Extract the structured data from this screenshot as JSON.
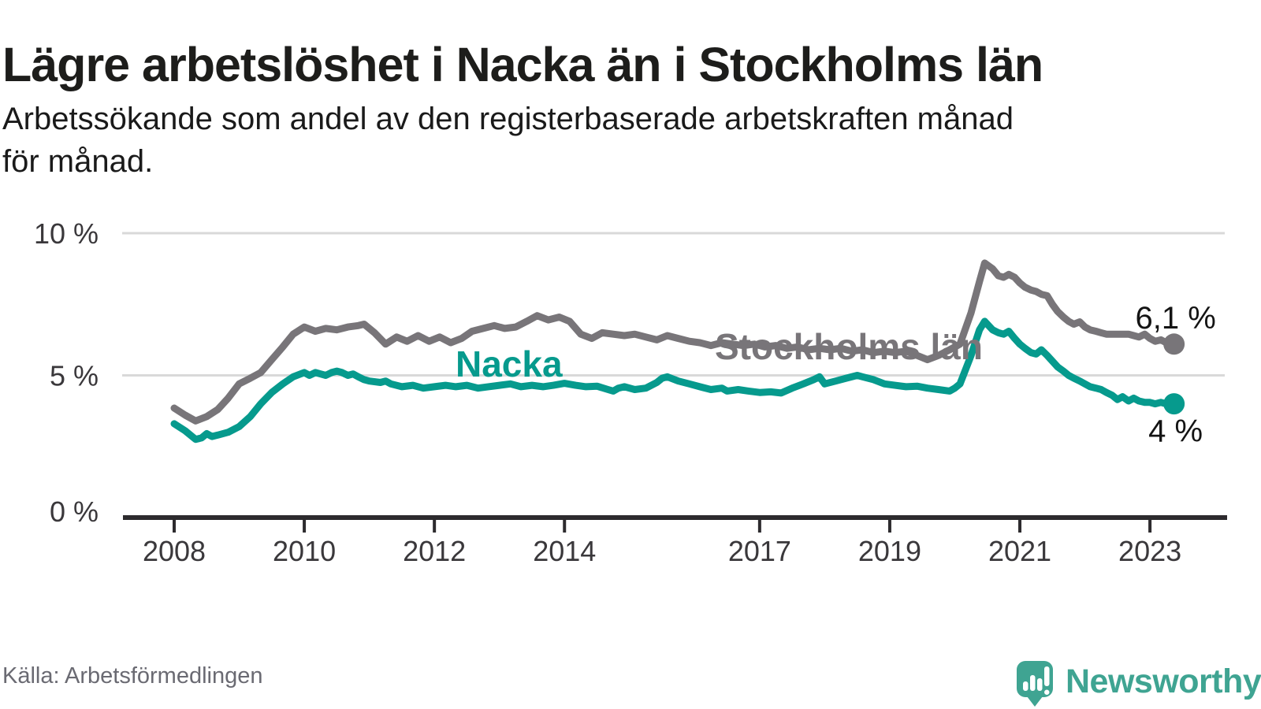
{
  "title": "Lägre arbetslöshet i Nacka än i Stockholms län",
  "subtitle": "Arbetssökande som andel av den registerbaserade arbetskraften månad\nför månad.",
  "source": "Källa: Arbetsförmedlingen",
  "brand": {
    "name": "Newsworthy",
    "color": "#3fa492"
  },
  "colors": {
    "stockholm_gray": "#787579",
    "nacka_teal": "#069a8d",
    "grid": "#d9d9d9",
    "axis": "#2d2b2e",
    "tick_label": "#3a383b",
    "end_label": "#141414",
    "title_text": "#1d1d1b",
    "source_text": "#6a6a72",
    "logo_teal": "#3fa492"
  },
  "chart_data": {
    "type": "line",
    "title": "Lägre arbetslöshet i Nacka än i Stockholms län",
    "xlabel": "",
    "ylabel": "",
    "y_unit": "%",
    "ylim": [
      0,
      10
    ],
    "xlim": [
      2007.2,
      2024.2
    ],
    "grid": "horizontal",
    "legend": "inline-labels",
    "yticks": [
      {
        "value": 10,
        "label": "10 %"
      },
      {
        "value": 5,
        "label": "5 %"
      },
      {
        "value": 0,
        "label": "0 %"
      }
    ],
    "xticks": [
      {
        "value": 2008,
        "label": "2008"
      },
      {
        "value": 2010,
        "label": "2010"
      },
      {
        "value": 2012,
        "label": "2012"
      },
      {
        "value": 2014,
        "label": "2014"
      },
      {
        "value": 2017,
        "label": "2017"
      },
      {
        "value": 2019,
        "label": "2019"
      },
      {
        "value": 2021,
        "label": "2021"
      },
      {
        "value": 2023,
        "label": "2023"
      }
    ],
    "series": [
      {
        "name": "Stockholms län",
        "color": "#787579",
        "end_label": "6,1 %",
        "end_value": 6.1,
        "points": [
          [
            2008.0,
            3.85
          ],
          [
            2008.17,
            3.6
          ],
          [
            2008.33,
            3.4
          ],
          [
            2008.5,
            3.55
          ],
          [
            2008.67,
            3.8
          ],
          [
            2008.83,
            4.2
          ],
          [
            2009.0,
            4.7
          ],
          [
            2009.17,
            4.9
          ],
          [
            2009.33,
            5.1
          ],
          [
            2009.5,
            5.55
          ],
          [
            2009.67,
            6.0
          ],
          [
            2009.83,
            6.45
          ],
          [
            2010.0,
            6.7
          ],
          [
            2010.17,
            6.55
          ],
          [
            2010.33,
            6.65
          ],
          [
            2010.5,
            6.6
          ],
          [
            2010.67,
            6.7
          ],
          [
            2010.83,
            6.75
          ],
          [
            2010.92,
            6.8
          ],
          [
            2011.08,
            6.5
          ],
          [
            2011.25,
            6.1
          ],
          [
            2011.42,
            6.35
          ],
          [
            2011.58,
            6.2
          ],
          [
            2011.75,
            6.4
          ],
          [
            2011.92,
            6.2
          ],
          [
            2012.08,
            6.35
          ],
          [
            2012.25,
            6.15
          ],
          [
            2012.42,
            6.3
          ],
          [
            2012.58,
            6.55
          ],
          [
            2012.75,
            6.65
          ],
          [
            2012.92,
            6.75
          ],
          [
            2013.08,
            6.65
          ],
          [
            2013.25,
            6.7
          ],
          [
            2013.42,
            6.9
          ],
          [
            2013.58,
            7.1
          ],
          [
            2013.75,
            6.95
          ],
          [
            2013.92,
            7.05
          ],
          [
            2014.08,
            6.9
          ],
          [
            2014.25,
            6.45
          ],
          [
            2014.42,
            6.3
          ],
          [
            2014.58,
            6.5
          ],
          [
            2014.75,
            6.45
          ],
          [
            2014.92,
            6.4
          ],
          [
            2015.08,
            6.45
          ],
          [
            2015.25,
            6.35
          ],
          [
            2015.42,
            6.25
          ],
          [
            2015.58,
            6.4
          ],
          [
            2015.75,
            6.3
          ],
          [
            2015.92,
            6.2
          ],
          [
            2016.08,
            6.15
          ],
          [
            2016.25,
            6.05
          ],
          [
            2016.42,
            6.15
          ],
          [
            2016.58,
            6.1
          ],
          [
            2016.75,
            6.05
          ],
          [
            2016.92,
            6.1
          ],
          [
            2017.08,
            6.0
          ],
          [
            2017.25,
            6.05
          ],
          [
            2017.42,
            5.95
          ],
          [
            2017.58,
            6.0
          ],
          [
            2017.75,
            5.9
          ],
          [
            2017.92,
            5.95
          ],
          [
            2018.08,
            5.9
          ],
          [
            2018.25,
            5.95
          ],
          [
            2018.42,
            5.85
          ],
          [
            2018.58,
            5.9
          ],
          [
            2018.75,
            5.8
          ],
          [
            2018.92,
            5.85
          ],
          [
            2019.08,
            5.8
          ],
          [
            2019.25,
            5.85
          ],
          [
            2019.42,
            5.7
          ],
          [
            2019.58,
            5.55
          ],
          [
            2019.75,
            5.7
          ],
          [
            2019.92,
            5.9
          ],
          [
            2020.08,
            6.1
          ],
          [
            2020.25,
            7.2
          ],
          [
            2020.38,
            8.3
          ],
          [
            2020.46,
            8.95
          ],
          [
            2020.58,
            8.75
          ],
          [
            2020.67,
            8.5
          ],
          [
            2020.75,
            8.45
          ],
          [
            2020.83,
            8.55
          ],
          [
            2020.92,
            8.45
          ],
          [
            2021.0,
            8.25
          ],
          [
            2021.08,
            8.1
          ],
          [
            2021.17,
            8.0
          ],
          [
            2021.25,
            7.95
          ],
          [
            2021.33,
            7.85
          ],
          [
            2021.42,
            7.8
          ],
          [
            2021.5,
            7.5
          ],
          [
            2021.58,
            7.25
          ],
          [
            2021.67,
            7.05
          ],
          [
            2021.75,
            6.9
          ],
          [
            2021.83,
            6.8
          ],
          [
            2021.92,
            6.88
          ],
          [
            2022.0,
            6.7
          ],
          [
            2022.08,
            6.6
          ],
          [
            2022.17,
            6.55
          ],
          [
            2022.25,
            6.5
          ],
          [
            2022.33,
            6.45
          ],
          [
            2022.5,
            6.45
          ],
          [
            2022.67,
            6.45
          ],
          [
            2022.75,
            6.4
          ],
          [
            2022.83,
            6.35
          ],
          [
            2022.92,
            6.45
          ],
          [
            2023.0,
            6.3
          ],
          [
            2023.08,
            6.2
          ],
          [
            2023.17,
            6.25
          ],
          [
            2023.25,
            6.15
          ],
          [
            2023.37,
            6.1
          ]
        ]
      },
      {
        "name": "Nacka",
        "color": "#069a8d",
        "end_label": "4 %",
        "end_value": 4.0,
        "points": [
          [
            2008.0,
            3.3
          ],
          [
            2008.17,
            3.05
          ],
          [
            2008.33,
            2.75
          ],
          [
            2008.42,
            2.8
          ],
          [
            2008.5,
            2.95
          ],
          [
            2008.58,
            2.85
          ],
          [
            2008.67,
            2.9
          ],
          [
            2008.83,
            3.0
          ],
          [
            2009.0,
            3.2
          ],
          [
            2009.17,
            3.55
          ],
          [
            2009.33,
            4.0
          ],
          [
            2009.5,
            4.4
          ],
          [
            2009.67,
            4.7
          ],
          [
            2009.83,
            4.95
          ],
          [
            2010.0,
            5.1
          ],
          [
            2010.08,
            5.0
          ],
          [
            2010.17,
            5.1
          ],
          [
            2010.25,
            5.05
          ],
          [
            2010.33,
            5.0
          ],
          [
            2010.42,
            5.1
          ],
          [
            2010.5,
            5.15
          ],
          [
            2010.58,
            5.1
          ],
          [
            2010.67,
            5.0
          ],
          [
            2010.75,
            5.05
          ],
          [
            2010.83,
            4.95
          ],
          [
            2010.92,
            4.85
          ],
          [
            2011.0,
            4.8
          ],
          [
            2011.17,
            4.75
          ],
          [
            2011.25,
            4.8
          ],
          [
            2011.33,
            4.7
          ],
          [
            2011.5,
            4.6
          ],
          [
            2011.67,
            4.65
          ],
          [
            2011.83,
            4.55
          ],
          [
            2012.0,
            4.6
          ],
          [
            2012.17,
            4.65
          ],
          [
            2012.33,
            4.6
          ],
          [
            2012.5,
            4.65
          ],
          [
            2012.67,
            4.55
          ],
          [
            2012.83,
            4.6
          ],
          [
            2013.0,
            4.65
          ],
          [
            2013.17,
            4.7
          ],
          [
            2013.33,
            4.6
          ],
          [
            2013.5,
            4.65
          ],
          [
            2013.67,
            4.6
          ],
          [
            2013.83,
            4.65
          ],
          [
            2014.0,
            4.72
          ],
          [
            2014.17,
            4.65
          ],
          [
            2014.33,
            4.6
          ],
          [
            2014.5,
            4.62
          ],
          [
            2014.67,
            4.5
          ],
          [
            2014.75,
            4.45
          ],
          [
            2014.83,
            4.55
          ],
          [
            2014.92,
            4.6
          ],
          [
            2015.08,
            4.5
          ],
          [
            2015.25,
            4.55
          ],
          [
            2015.42,
            4.75
          ],
          [
            2015.5,
            4.9
          ],
          [
            2015.58,
            4.95
          ],
          [
            2015.75,
            4.8
          ],
          [
            2015.92,
            4.7
          ],
          [
            2016.08,
            4.6
          ],
          [
            2016.25,
            4.5
          ],
          [
            2016.42,
            4.55
          ],
          [
            2016.5,
            4.45
          ],
          [
            2016.67,
            4.5
          ],
          [
            2016.83,
            4.45
          ],
          [
            2017.0,
            4.4
          ],
          [
            2017.17,
            4.42
          ],
          [
            2017.33,
            4.38
          ],
          [
            2017.5,
            4.55
          ],
          [
            2017.67,
            4.7
          ],
          [
            2017.83,
            4.85
          ],
          [
            2017.92,
            4.95
          ],
          [
            2018.0,
            4.7
          ],
          [
            2018.17,
            4.8
          ],
          [
            2018.33,
            4.9
          ],
          [
            2018.5,
            5.0
          ],
          [
            2018.58,
            4.95
          ],
          [
            2018.75,
            4.85
          ],
          [
            2018.92,
            4.7
          ],
          [
            2019.08,
            4.65
          ],
          [
            2019.25,
            4.6
          ],
          [
            2019.42,
            4.62
          ],
          [
            2019.58,
            4.55
          ],
          [
            2019.75,
            4.5
          ],
          [
            2019.92,
            4.45
          ],
          [
            2020.0,
            4.55
          ],
          [
            2020.08,
            4.7
          ],
          [
            2020.25,
            5.7
          ],
          [
            2020.38,
            6.6
          ],
          [
            2020.46,
            6.9
          ],
          [
            2020.58,
            6.6
          ],
          [
            2020.67,
            6.5
          ],
          [
            2020.75,
            6.45
          ],
          [
            2020.83,
            6.55
          ],
          [
            2020.92,
            6.3
          ],
          [
            2021.0,
            6.1
          ],
          [
            2021.08,
            5.95
          ],
          [
            2021.17,
            5.8
          ],
          [
            2021.25,
            5.75
          ],
          [
            2021.33,
            5.9
          ],
          [
            2021.42,
            5.7
          ],
          [
            2021.5,
            5.5
          ],
          [
            2021.58,
            5.3
          ],
          [
            2021.67,
            5.15
          ],
          [
            2021.75,
            5.0
          ],
          [
            2021.83,
            4.9
          ],
          [
            2021.92,
            4.8
          ],
          [
            2022.0,
            4.7
          ],
          [
            2022.08,
            4.6
          ],
          [
            2022.17,
            4.55
          ],
          [
            2022.25,
            4.5
          ],
          [
            2022.33,
            4.4
          ],
          [
            2022.42,
            4.3
          ],
          [
            2022.5,
            4.15
          ],
          [
            2022.58,
            4.25
          ],
          [
            2022.67,
            4.1
          ],
          [
            2022.75,
            4.2
          ],
          [
            2022.83,
            4.1
          ],
          [
            2022.92,
            4.05
          ],
          [
            2023.0,
            4.05
          ],
          [
            2023.08,
            4.0
          ],
          [
            2023.17,
            4.05
          ],
          [
            2023.25,
            4.0
          ],
          [
            2023.37,
            4.0
          ]
        ]
      }
    ]
  }
}
